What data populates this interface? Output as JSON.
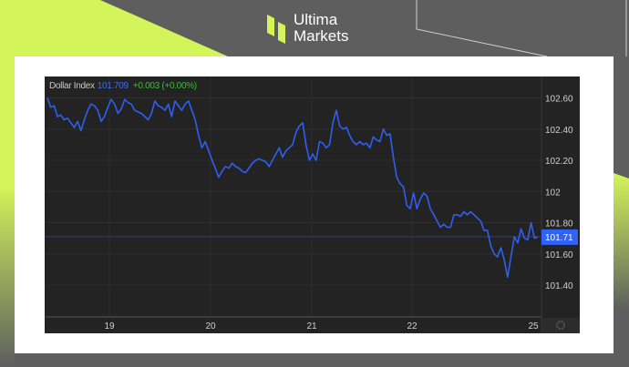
{
  "brand": {
    "line1": "Ultima",
    "line2": "Markets",
    "accent": "#d4f55a"
  },
  "legend": {
    "name": "Dollar Index",
    "price": "101.709",
    "change": "+0.003 (+0.00%)"
  },
  "colors": {
    "line": "#2f5ff0",
    "background": "#232323",
    "price_tag": "#2f62f5",
    "change": "#3dbb3d"
  },
  "settings_icon": "gear-icon",
  "chart_data": {
    "type": "line",
    "title": "",
    "xlabel": "",
    "ylabel": "",
    "ylim": [
      101.22,
      102.74
    ],
    "grid": true,
    "y_ticks": [
      "102.60",
      "102.40",
      "102.20",
      "102",
      "101.80",
      "101.60",
      "101.40"
    ],
    "y_tick_values": [
      102.6,
      102.4,
      102.2,
      102.0,
      101.8,
      101.6,
      101.4
    ],
    "x_ticks": [
      "19",
      "20",
      "21",
      "22",
      "25"
    ],
    "current_value": "101.71",
    "series": [
      {
        "values": [
          102.6,
          102.54,
          102.55,
          102.48,
          102.49,
          102.46,
          102.47,
          102.44,
          102.41,
          102.45,
          102.39,
          102.46,
          102.52,
          102.56,
          102.55,
          102.52,
          102.45,
          102.48,
          102.54,
          102.59,
          102.56,
          102.5,
          102.53,
          102.59,
          102.57,
          102.56,
          102.52,
          102.51,
          102.5,
          102.48,
          102.46,
          102.5,
          102.58,
          102.55,
          102.54,
          102.52,
          102.56,
          102.48,
          102.58,
          102.55,
          102.52,
          102.56,
          102.58,
          102.52,
          102.46,
          102.36,
          102.28,
          102.32,
          102.26,
          102.2,
          102.15,
          102.09,
          102.13,
          102.16,
          102.15,
          102.18,
          102.16,
          102.15,
          102.13,
          102.12,
          102.15,
          102.18,
          102.2,
          102.21,
          102.2,
          102.19,
          102.16,
          102.2,
          102.24,
          102.28,
          102.22,
          102.26,
          102.28,
          102.3,
          102.38,
          102.42,
          102.44,
          102.3,
          102.2,
          102.24,
          102.2,
          102.32,
          102.31,
          102.28,
          102.3,
          102.44,
          102.52,
          102.42,
          102.4,
          102.41,
          102.36,
          102.32,
          102.3,
          102.32,
          102.3,
          102.31,
          102.28,
          102.35,
          102.33,
          102.32,
          102.4,
          102.36,
          102.37,
          102.22,
          102.09,
          102.05,
          102.03,
          101.91,
          101.89,
          101.99,
          101.89,
          101.95,
          101.99,
          101.97,
          101.89,
          101.85,
          101.81,
          101.77,
          101.79,
          101.77,
          101.77,
          101.85,
          101.85,
          101.84,
          101.87,
          101.85,
          101.87,
          101.85,
          101.83,
          101.81,
          101.75,
          101.75,
          101.65,
          101.6,
          101.58,
          101.64,
          101.56,
          101.45,
          101.58,
          101.71,
          101.67,
          101.76,
          101.7,
          101.69,
          101.8,
          101.7,
          101.71
        ]
      }
    ]
  }
}
